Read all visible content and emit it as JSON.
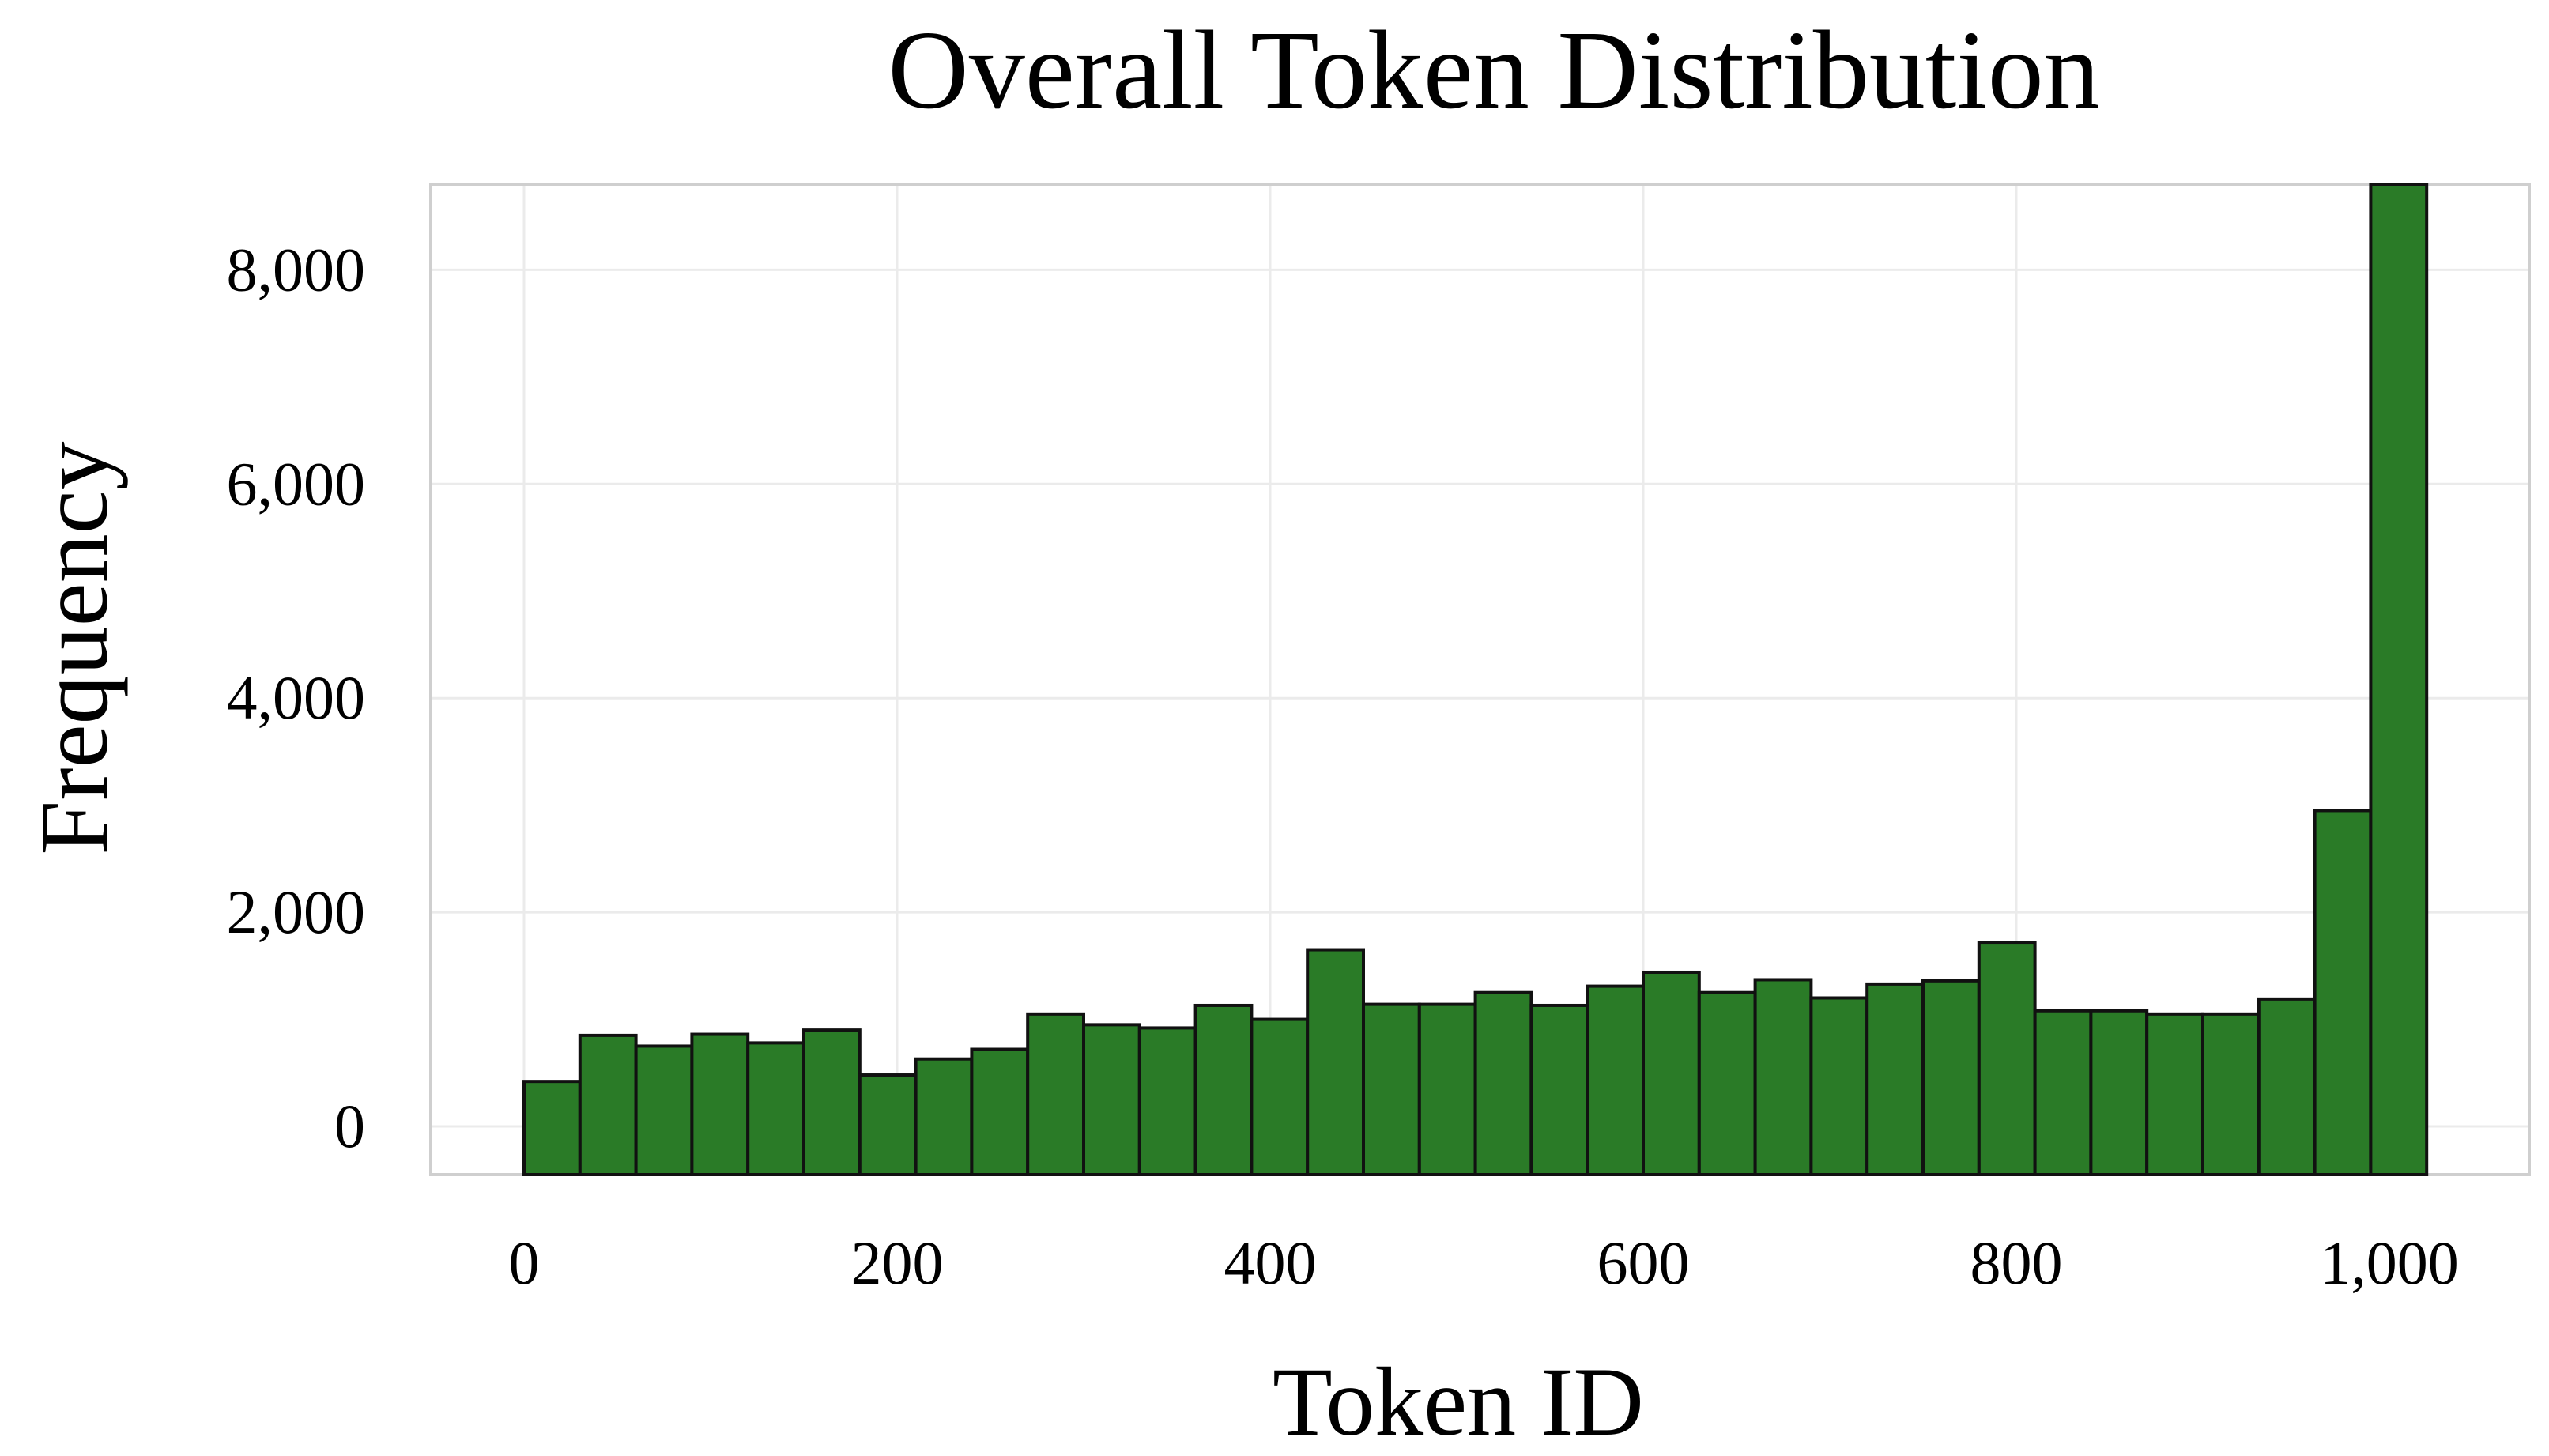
{
  "colors": {
    "bar": "#2a7b27",
    "bar_edge": "#111111"
  },
  "chart_data": {
    "type": "bar",
    "title": "Overall Token Distribution",
    "xlabel": "Token ID",
    "ylabel": "Frequency",
    "grid": true,
    "xlim": [
      -50,
      1075
    ],
    "ylim": [
      -450,
      8800
    ],
    "xticks": [
      {
        "value": 0,
        "label": "0"
      },
      {
        "value": 200,
        "label": "200"
      },
      {
        "value": 400,
        "label": "400"
      },
      {
        "value": 600,
        "label": "600"
      },
      {
        "value": 800,
        "label": "800"
      },
      {
        "value": 1000,
        "label": "1,000"
      }
    ],
    "yticks": [
      {
        "value": 0,
        "label": "0"
      },
      {
        "value": 2000,
        "label": "2,000"
      },
      {
        "value": 4000,
        "label": "4,000"
      },
      {
        "value": 6000,
        "label": "6,000"
      },
      {
        "value": 8000,
        "label": "8,000"
      }
    ],
    "bin_width": 30,
    "bin_start": 0,
    "values": [
      420,
      850,
      750,
      860,
      780,
      900,
      480,
      630,
      720,
      1050,
      950,
      920,
      1130,
      1000,
      1650,
      1140,
      1140,
      1250,
      1130,
      1310,
      1440,
      1250,
      1370,
      1200,
      1330,
      1360,
      1720,
      1080,
      1080,
      1050,
      1050,
      1190,
      2950,
      8800
    ]
  }
}
